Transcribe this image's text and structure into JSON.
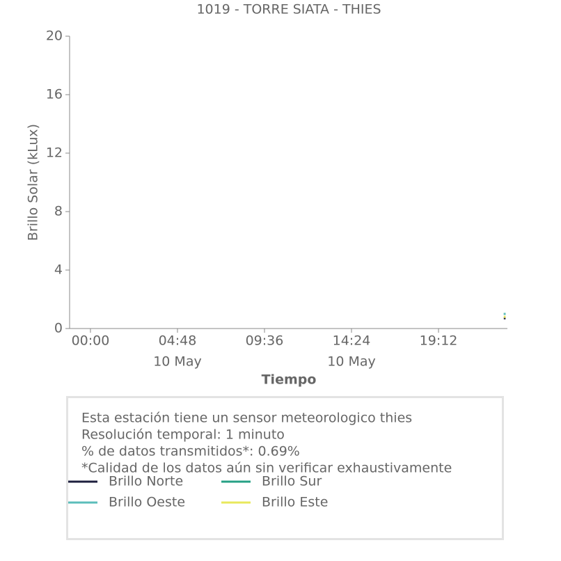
{
  "chart_data": {
    "type": "line",
    "title": "1019 - TORRE SIATA - THIES",
    "y_label": "Brillo Solar (kLux)",
    "x_label": "Tiempo",
    "xlim": [
      -1.15,
      23.0
    ],
    "xticks": [
      {
        "value": 0,
        "label": "00:00"
      },
      {
        "value": 4.8,
        "label": "04:48",
        "date": "10 May"
      },
      {
        "value": 9.6,
        "label": "09:36"
      },
      {
        "value": 14.4,
        "label": "14:24",
        "date": "10 May"
      },
      {
        "value": 19.2,
        "label": "19:12"
      }
    ],
    "ylim": [
      0,
      20
    ],
    "yticks": [
      0,
      4,
      8,
      12,
      16,
      20
    ],
    "x": [
      22.8,
      22.82,
      22.84,
      22.86,
      22.88,
      22.9
    ],
    "series": [
      {
        "name": "Brillo Norte",
        "color": "#1d1f3e",
        "values": [
          0.7,
          0.7,
          0.7,
          0.7,
          0.7,
          0.7
        ]
      },
      {
        "name": "Brillo Sur",
        "color": "#26a085",
        "values": [
          1.0,
          1.0,
          1.0,
          1.0,
          1.0,
          1.0
        ]
      },
      {
        "name": "Brillo Oeste",
        "color": "#5bbdba",
        "values": [
          1.0,
          1.0,
          1.0,
          1.0,
          1.0,
          1.0
        ]
      },
      {
        "name": "Brillo Este",
        "color": "#e8e85c",
        "values": [
          0.8,
          0.8,
          0.8,
          0.8,
          0.8,
          0.8
        ]
      }
    ],
    "note_lines": [
      "Esta estación tiene un sensor meteorologico thies",
      "Resolución temporal: 1 minuto",
      "% de datos transmitidos*: 0.69%",
      "*Calidad de los datos aún sin verificar exhaustivamente"
    ]
  }
}
